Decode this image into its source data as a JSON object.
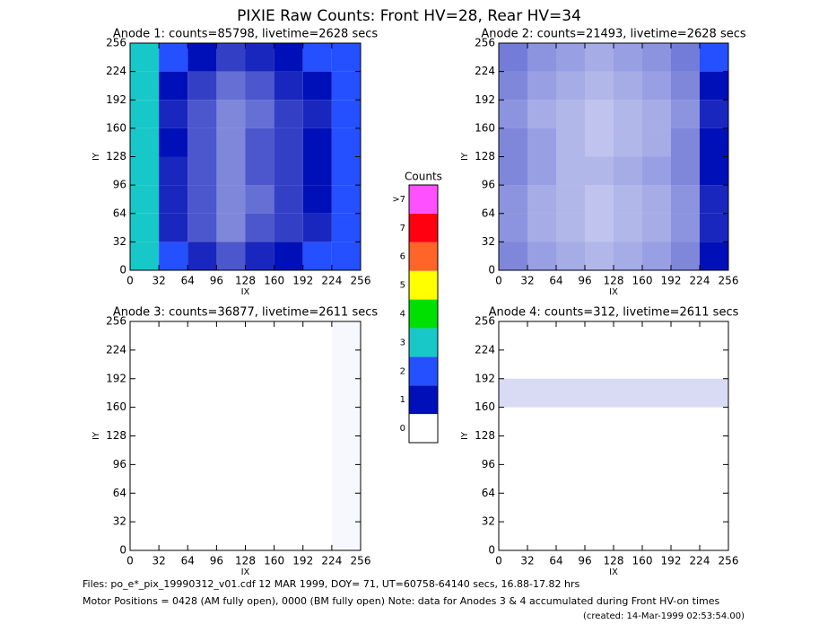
{
  "title": "PIXIE Raw Counts:  Front HV=28, Rear HV=34",
  "colorbar": {
    "title": "Counts",
    "levels": [
      "0",
      "1",
      "2",
      "3",
      "4",
      "5",
      "6",
      "7",
      ">7"
    ],
    "colors": [
      "#ffffff",
      "#0010b8",
      "#2450ff",
      "#18c8c8",
      "#00e000",
      "#ffff00",
      "#ff6428",
      "#ff0010",
      "#ff50ff"
    ]
  },
  "footer": [
    "Files: po_e*_pix_19990312_v01.cdf    12 MAR 1999, DOY= 71, UT=60758-64140 secs, 16.88-17.82 hrs",
    "Motor Positions = 0428 (AM fully open), 0000 (BM fully open)    Note: data for Anodes 3 & 4 accumulated during Front HV-on times",
    "(created: 14-Mar-1999 02:53:54.00)"
  ],
  "chart_data": [
    {
      "type": "heatmap",
      "title": "Anode 1: counts=85798, livetime=2628 secs",
      "xlabel": "IX",
      "ylabel": "IY",
      "xlim": [
        0,
        256
      ],
      "ylim": [
        0,
        256
      ],
      "xticks": [
        0,
        32,
        64,
        96,
        128,
        160,
        192,
        224,
        256
      ],
      "yticks": [
        0,
        32,
        64,
        96,
        128,
        160,
        192,
        224,
        256
      ],
      "z": [
        [
          2.6,
          1.1,
          0.9,
          0.7,
          0.9,
          1.0,
          1.1,
          1.9
        ],
        [
          2.4,
          0.9,
          0.7,
          0.5,
          0.7,
          0.8,
          0.9,
          1.7
        ],
        [
          2.5,
          0.9,
          0.7,
          0.5,
          0.6,
          0.8,
          1.0,
          1.8
        ],
        [
          2.6,
          0.9,
          0.7,
          0.5,
          0.7,
          0.8,
          1.0,
          1.8
        ],
        [
          2.7,
          1.0,
          0.7,
          0.5,
          0.7,
          0.8,
          1.0,
          1.9
        ],
        [
          2.5,
          0.9,
          0.7,
          0.5,
          0.6,
          0.8,
          0.9,
          1.7
        ],
        [
          2.6,
          1.0,
          0.8,
          0.6,
          0.7,
          0.9,
          1.0,
          1.8
        ],
        [
          2.8,
          1.2,
          1.0,
          0.8,
          0.9,
          1.0,
          1.2,
          2.0
        ]
      ]
    },
    {
      "type": "heatmap",
      "title": "Anode 2: counts=21493, livetime=2628 secs",
      "xlabel": "IX",
      "ylabel": "IY",
      "xlim": [
        0,
        256
      ],
      "ylim": [
        0,
        256
      ],
      "xticks": [
        0,
        32,
        64,
        96,
        128,
        160,
        192,
        224,
        256
      ],
      "yticks": [
        0,
        32,
        64,
        96,
        128,
        160,
        192,
        224,
        256
      ],
      "z": [
        [
          0.5,
          0.4,
          0.35,
          0.3,
          0.35,
          0.4,
          0.5,
          1.0
        ],
        [
          0.45,
          0.35,
          0.3,
          0.25,
          0.3,
          0.35,
          0.45,
          0.9
        ],
        [
          0.45,
          0.35,
          0.3,
          0.25,
          0.3,
          0.35,
          0.45,
          0.9
        ],
        [
          0.5,
          0.4,
          0.3,
          0.3,
          0.35,
          0.4,
          0.5,
          1.0
        ],
        [
          0.5,
          0.4,
          0.3,
          0.25,
          0.3,
          0.35,
          0.5,
          1.0
        ],
        [
          0.45,
          0.35,
          0.3,
          0.25,
          0.3,
          0.35,
          0.45,
          0.9
        ],
        [
          0.5,
          0.4,
          0.35,
          0.3,
          0.35,
          0.4,
          0.5,
          1.0
        ],
        [
          0.55,
          0.45,
          0.4,
          0.35,
          0.4,
          0.45,
          0.55,
          1.1
        ]
      ]
    },
    {
      "type": "heatmap",
      "title": "Anode 3: counts=36877, livetime=2611 secs",
      "xlabel": "IX",
      "ylabel": "IY",
      "xlim": [
        0,
        256
      ],
      "ylim": [
        0,
        256
      ],
      "xticks": [
        0,
        32,
        64,
        96,
        128,
        160,
        192,
        224,
        256
      ],
      "yticks": [
        0,
        32,
        64,
        96,
        128,
        160,
        192,
        224,
        256
      ],
      "z": [
        [
          0,
          0,
          0,
          0,
          0,
          0,
          0,
          0.03
        ],
        [
          0,
          0,
          0,
          0,
          0,
          0,
          0,
          0.03
        ],
        [
          0,
          0,
          0,
          0,
          0,
          0,
          0,
          0.03
        ],
        [
          0,
          0,
          0,
          0,
          0,
          0,
          0,
          0.03
        ],
        [
          0,
          0,
          0,
          0,
          0,
          0,
          0,
          0.03
        ],
        [
          0,
          0,
          0,
          0,
          0,
          0,
          0,
          0.03
        ],
        [
          0,
          0,
          0,
          0,
          0,
          0,
          0,
          0.03
        ],
        [
          0,
          0,
          0,
          0,
          0,
          0,
          0,
          0.03
        ]
      ]
    },
    {
      "type": "heatmap",
      "title": "Anode 4: counts=312, livetime=2611 secs",
      "xlabel": "IX",
      "ylabel": "IY",
      "xlim": [
        0,
        256
      ],
      "ylim": [
        0,
        256
      ],
      "xticks": [
        0,
        32,
        64,
        96,
        128,
        160,
        192,
        224,
        256
      ],
      "yticks": [
        0,
        32,
        64,
        96,
        128,
        160,
        192,
        224,
        256
      ],
      "z": [
        [
          0,
          0,
          0,
          0,
          0,
          0,
          0,
          0
        ],
        [
          0,
          0,
          0,
          0,
          0,
          0,
          0,
          0
        ],
        [
          0,
          0,
          0,
          0,
          0,
          0,
          0,
          0
        ],
        [
          0,
          0,
          0,
          0,
          0,
          0,
          0,
          0
        ],
        [
          0,
          0,
          0,
          0,
          0,
          0,
          0,
          0
        ],
        [
          0.15,
          0.15,
          0.15,
          0.15,
          0.15,
          0.15,
          0.15,
          0.15
        ],
        [
          0,
          0,
          0,
          0,
          0,
          0,
          0,
          0
        ],
        [
          0,
          0,
          0,
          0,
          0,
          0,
          0,
          0
        ]
      ]
    }
  ]
}
